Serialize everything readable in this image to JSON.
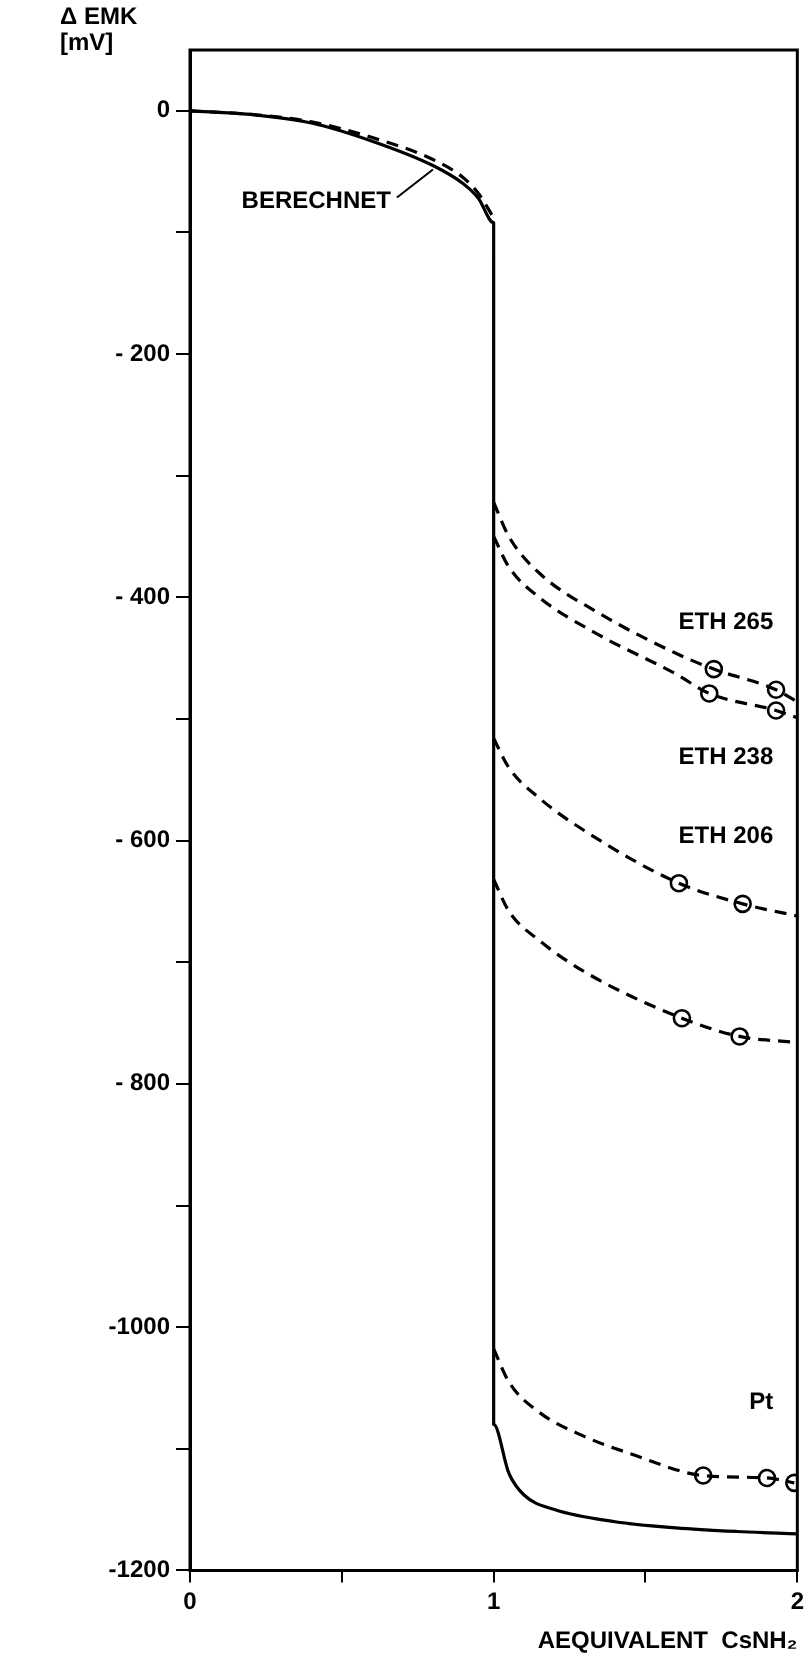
{
  "chart_data": {
    "type": "line",
    "ylabel": "Δ EMK\n[mV]",
    "xlabel": "AEQUIVALENT  CsNH₂",
    "xlim": [
      0,
      2
    ],
    "xticks": [
      0,
      {
        "value": 0.5,
        "label": null
      },
      1,
      {
        "value": 1.5,
        "label": null
      },
      2
    ],
    "ylim": [
      -1200,
      50
    ],
    "yticks": [
      0,
      {
        "value": -100,
        "label": null
      },
      {
        "value": -200,
        "label": "- 200"
      },
      {
        "value": -300,
        "label": null
      },
      {
        "value": -400,
        "label": "- 400"
      },
      {
        "value": -500,
        "label": null
      },
      {
        "value": -600,
        "label": "- 600"
      },
      {
        "value": -700,
        "label": null
      },
      {
        "value": -800,
        "label": "- 800"
      },
      {
        "value": -900,
        "label": null
      },
      {
        "value": -1000,
        "label": "-1000"
      },
      {
        "value": -1100,
        "label": null
      },
      {
        "value": -1200,
        "label": "-1200"
      }
    ],
    "grid": false,
    "series": [
      {
        "name": "BERECHNET",
        "type": "line",
        "color": "#000000",
        "line_style": "solid",
        "marker": "none",
        "x": [
          0,
          0.2,
          0.4,
          0.6,
          0.8,
          0.9,
          0.95,
          1.0,
          1.0,
          1.05,
          1.1,
          1.2,
          1.4,
          1.6,
          1.8,
          2.0
        ],
        "values": [
          0,
          -3,
          -10,
          -25,
          -45,
          -60,
          -72,
          -92,
          -1080,
          -1120,
          -1138,
          -1150,
          -1160,
          -1165,
          -1168,
          -1170
        ]
      },
      {
        "type": "line",
        "color": "#000000",
        "line_style": "dashed",
        "marker": "none",
        "x": [
          0,
          0.2,
          0.4,
          0.6,
          0.8,
          0.9,
          0.95,
          1.0
        ],
        "values": [
          0,
          -3,
          -9,
          -22,
          -40,
          -55,
          -68,
          -88
        ]
      },
      {
        "name": "ETH 265",
        "type": "line",
        "color": "#000000",
        "line_style": "dashed",
        "marker": "none",
        "x": [
          1.0,
          1.05,
          1.15,
          1.34,
          1.6,
          1.725,
          1.93,
          2.0
        ],
        "values": [
          -322,
          -350,
          -380,
          -412,
          -446,
          -459,
          -476,
          -486
        ]
      },
      {
        "name": "ETH 238",
        "type": "line",
        "color": "#000000",
        "line_style": "dashed",
        "marker": "none",
        "x": [
          1.0,
          1.05,
          1.15,
          1.34,
          1.6,
          1.71,
          1.93,
          2.0
        ],
        "values": [
          -350,
          -375,
          -400,
          -430,
          -463,
          -479,
          -493,
          -499
        ]
      },
      {
        "name": "ETH 206",
        "type": "line",
        "color": "#000000",
        "line_style": "dashed",
        "marker": "none",
        "x": [
          1.0,
          1.05,
          1.15,
          1.3,
          1.61,
          1.82,
          2.0
        ],
        "values": [
          -516,
          -540,
          -565,
          -592,
          -635,
          -652,
          -662
        ]
      },
      {
        "type": "line",
        "color": "#000000",
        "line_style": "dashed",
        "marker": "none",
        "x": [
          1.0,
          1.05,
          1.15,
          1.3,
          1.62,
          1.81,
          2.0
        ],
        "values": [
          -632,
          -658,
          -682,
          -708,
          -746,
          -761,
          -766
        ]
      },
      {
        "name": "Pt",
        "type": "line",
        "color": "#000000",
        "line_style": "dashed",
        "marker": "none",
        "x": [
          1.0,
          1.05,
          1.15,
          1.3,
          1.45,
          1.69,
          1.9,
          1.99
        ],
        "values": [
          -1018,
          -1045,
          -1070,
          -1090,
          -1104,
          -1122,
          -1124,
          -1128
        ]
      },
      {
        "type": "scatter",
        "color": "#000000",
        "marker": "circle",
        "x": [
          1.725,
          1.93,
          1.71,
          1.93,
          1.61,
          1.82,
          1.62,
          1.81,
          1.69,
          1.9,
          1.99
        ],
        "values": [
          -459,
          -476,
          -479,
          -493,
          -635,
          -652,
          -746,
          -761,
          -1122,
          -1124,
          -1128
        ]
      }
    ]
  }
}
